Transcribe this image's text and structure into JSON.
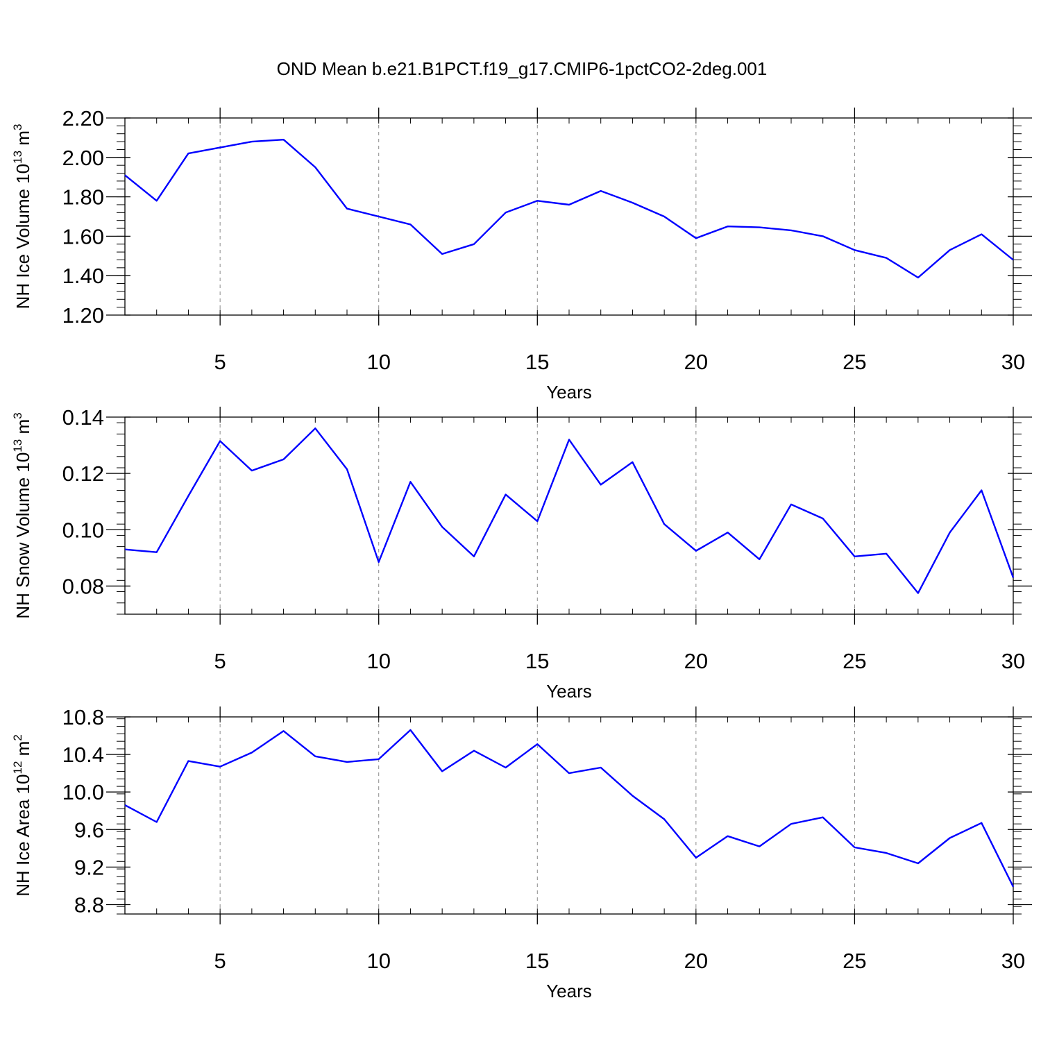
{
  "title": "OND Mean b.e21.B1PCT.f19_g17.CMIP6-1pctCO2-2deg.001",
  "line_color": "#0000ff",
  "chart_data": [
    {
      "type": "line",
      "xlabel": "Years",
      "ylabel": {
        "text": "NH Ice Volume 10",
        "sup1": "13",
        "mid": " m",
        "sup2": "3"
      },
      "xlim": [
        2,
        30
      ],
      "ylim": [
        1.2,
        2.2
      ],
      "xticks": [
        5,
        10,
        15,
        20,
        25,
        30
      ],
      "yticks": [
        1.2,
        1.4,
        1.6,
        1.8,
        2.0,
        2.2
      ],
      "ytick_labels": [
        "1.20",
        "1.40",
        "1.60",
        "1.80",
        "2.00",
        "2.20"
      ],
      "x": [
        2,
        3,
        4,
        5,
        6,
        7,
        8,
        9,
        10,
        11,
        12,
        13,
        14,
        15,
        16,
        17,
        18,
        19,
        20,
        21,
        22,
        23,
        24,
        25,
        26,
        27,
        28,
        29,
        30
      ],
      "series": [
        {
          "values": [
            1.91,
            1.78,
            2.02,
            2.05,
            2.08,
            2.09,
            1.95,
            1.74,
            1.7,
            1.66,
            1.51,
            1.56,
            1.72,
            1.78,
            1.76,
            1.83,
            1.77,
            1.7,
            1.59,
            1.65,
            1.645,
            1.63,
            1.6,
            1.53,
            1.49,
            1.39,
            1.53,
            1.61,
            1.48
          ]
        }
      ]
    },
    {
      "type": "line",
      "xlabel": "Years",
      "ylabel": {
        "text": "NH Snow Volume 10",
        "sup1": "13",
        "mid": " m",
        "sup2": "3"
      },
      "xlim": [
        2,
        30
      ],
      "ylim": [
        0.07,
        0.14
      ],
      "xticks": [
        5,
        10,
        15,
        20,
        25,
        30
      ],
      "yticks": [
        0.08,
        0.1,
        0.12,
        0.14
      ],
      "ytick_labels": [
        "0.08",
        "0.10",
        "0.12",
        "0.14"
      ],
      "x": [
        2,
        3,
        4,
        5,
        6,
        7,
        8,
        9,
        10,
        11,
        12,
        13,
        14,
        15,
        16,
        17,
        18,
        19,
        20,
        21,
        22,
        23,
        24,
        25,
        26,
        27,
        28,
        29,
        30
      ],
      "series": [
        {
          "values": [
            0.093,
            0.092,
            0.112,
            0.1315,
            0.121,
            0.125,
            0.136,
            0.1215,
            0.0885,
            0.117,
            0.101,
            0.0905,
            0.1125,
            0.103,
            0.132,
            0.116,
            0.124,
            0.102,
            0.0925,
            0.099,
            0.0895,
            0.109,
            0.104,
            0.0905,
            0.0915,
            0.0775,
            0.099,
            0.114,
            0.083
          ]
        }
      ]
    },
    {
      "type": "line",
      "xlabel": "Years",
      "ylabel": {
        "text": "NH Ice Area 10",
        "sup1": "12",
        "mid": " m",
        "sup2": "2"
      },
      "xlim": [
        2,
        30
      ],
      "ylim": [
        8.7,
        10.8
      ],
      "xticks": [
        5,
        10,
        15,
        20,
        25,
        30
      ],
      "yticks": [
        8.8,
        9.2,
        9.6,
        10.0,
        10.4,
        10.8
      ],
      "ytick_labels": [
        "8.8",
        "9.2",
        "9.6",
        "10.0",
        "10.4",
        "10.8"
      ],
      "x": [
        2,
        3,
        4,
        5,
        6,
        7,
        8,
        9,
        10,
        11,
        12,
        13,
        14,
        15,
        16,
        17,
        18,
        19,
        20,
        21,
        22,
        23,
        24,
        25,
        26,
        27,
        28,
        29,
        30
      ],
      "series": [
        {
          "values": [
            9.86,
            9.68,
            10.33,
            10.27,
            10.42,
            10.65,
            10.38,
            10.32,
            10.35,
            10.66,
            10.22,
            10.44,
            10.26,
            10.51,
            10.2,
            10.26,
            9.96,
            9.71,
            9.3,
            9.53,
            9.42,
            9.66,
            9.73,
            9.41,
            9.35,
            9.24,
            9.51,
            9.67,
            8.99
          ]
        }
      ]
    }
  ]
}
